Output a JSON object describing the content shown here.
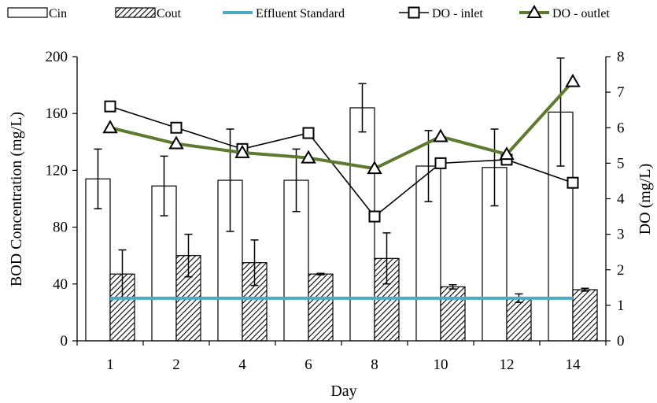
{
  "chart_data": {
    "type": "bar",
    "categories": [
      "1",
      "2",
      "4",
      "6",
      "8",
      "10",
      "12",
      "14"
    ],
    "xlabel": "Day",
    "ylabel": "BOD Concentration  (mg/L)",
    "y2label": "DO (mg/L)",
    "ylim": [
      0,
      200
    ],
    "y2lim": [
      0,
      8
    ],
    "yticks": [
      "0",
      "40",
      "80",
      "120",
      "160",
      "200"
    ],
    "y2ticks": [
      "0",
      "1",
      "2",
      "3",
      "4",
      "5",
      "6",
      "7",
      "8"
    ],
    "legend_position": "top",
    "grid": false,
    "bar_series": [
      {
        "name": "Cin",
        "values": [
          114,
          109,
          113,
          113,
          164,
          123,
          122,
          161
        ],
        "errors": [
          21,
          21,
          36,
          22,
          17,
          25,
          27,
          38
        ]
      },
      {
        "name": "Cout",
        "values": [
          47,
          60,
          55,
          47,
          58,
          38,
          30,
          36
        ],
        "errors": [
          17,
          15,
          16,
          0.5,
          18,
          1.5,
          3,
          1
        ]
      }
    ],
    "line_series": [
      {
        "name": "Effluent Standard",
        "axis": "left",
        "values": [
          30,
          30,
          30,
          30,
          30,
          30,
          30,
          30
        ],
        "color": "#4bacc6"
      },
      {
        "name": "DO - inlet",
        "axis": "right",
        "values": [
          6.6,
          6.0,
          5.4,
          5.85,
          3.5,
          5.0,
          5.1,
          4.45
        ],
        "color": "#000000",
        "marker": "square"
      },
      {
        "name": "DO - outlet",
        "axis": "right",
        "values": [
          6.0,
          5.55,
          5.3,
          5.15,
          4.85,
          5.75,
          5.25,
          7.3
        ],
        "color": "#5e7a2e",
        "marker": "triangle"
      }
    ]
  }
}
